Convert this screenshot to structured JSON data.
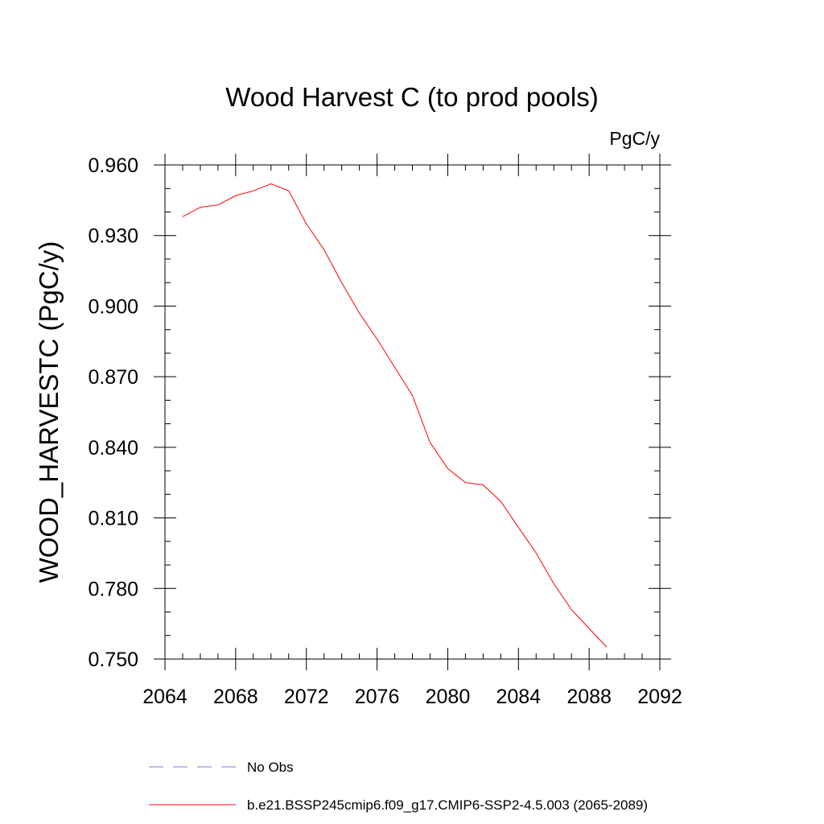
{
  "chart_data": {
    "type": "line",
    "title": "Wood Harvest C (to prod pools)",
    "units": "PgC/y",
    "xlabel": "",
    "ylabel": "WOOD_HARVESTC  (PgC/y)",
    "xlim": [
      2064,
      2092
    ],
    "ylim": [
      0.75,
      0.96
    ],
    "x_major_ticks": [
      2064,
      2068,
      2072,
      2076,
      2080,
      2084,
      2088,
      2092
    ],
    "x_minor_step": 1,
    "y_major_ticks": [
      0.75,
      0.78,
      0.81,
      0.84,
      0.87,
      0.9,
      0.93,
      0.96
    ],
    "y_minor_step": 0.01,
    "y_tick_labels": [
      "0.750",
      "0.780",
      "0.810",
      "0.840",
      "0.870",
      "0.900",
      "0.930",
      "0.960"
    ],
    "x_tick_labels": [
      "2064",
      "2068",
      "2072",
      "2076",
      "2080",
      "2084",
      "2088",
      "2092"
    ],
    "grid": false,
    "legend_position": "bottom",
    "series": [
      {
        "name": "No Obs",
        "color": "#7b7bc8",
        "dash": "dashed",
        "x": [],
        "values": []
      },
      {
        "name": "b.e21.BSSP245cmip6.f09_g17.CMIP6-SSP2-4.5.003 (2065-2089)",
        "color": "#ff0000",
        "dash": "solid",
        "x": [
          2065,
          2066,
          2067,
          2068,
          2069,
          2070,
          2071,
          2072,
          2073,
          2074,
          2075,
          2076,
          2077,
          2078,
          2079,
          2080,
          2081,
          2082,
          2083,
          2084,
          2085,
          2086,
          2087,
          2088,
          2089
        ],
        "values": [
          0.938,
          0.942,
          0.943,
          0.947,
          0.949,
          0.952,
          0.949,
          0.935,
          0.924,
          0.91,
          0.897,
          0.886,
          0.874,
          0.862,
          0.842,
          0.831,
          0.825,
          0.824,
          0.817,
          0.806,
          0.795,
          0.782,
          0.771,
          0.763,
          0.755
        ]
      }
    ]
  }
}
